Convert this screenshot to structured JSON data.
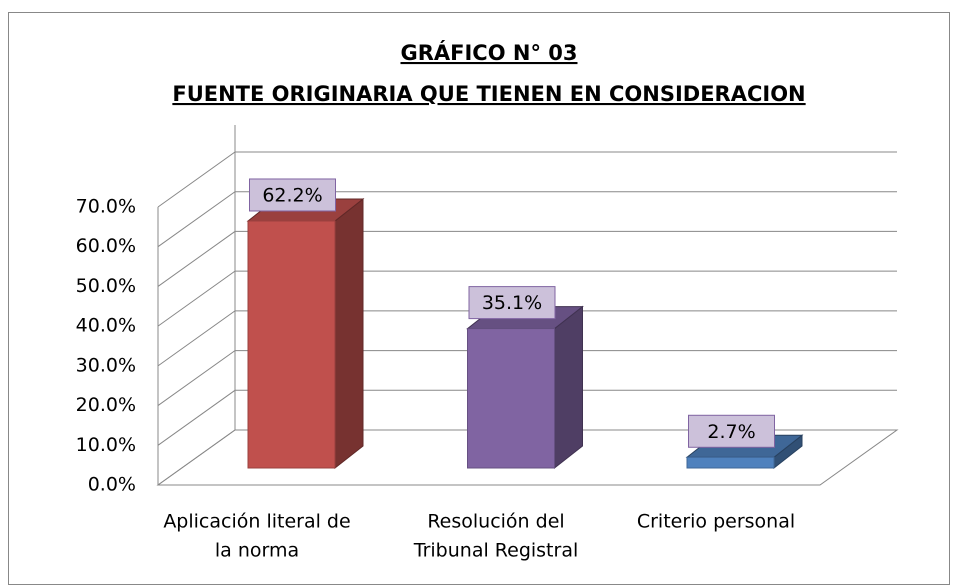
{
  "chart_data": {
    "type": "bar3d",
    "title": "GRÁFICO N° 03",
    "subtitle": "FUENTE ORIGINARIA QUE TIENEN EN CONSIDERACION",
    "categories": [
      [
        "Aplicación literal de",
        "la norma"
      ],
      [
        "Resolución del",
        "Tribunal Registral"
      ],
      [
        "Criterio personal"
      ]
    ],
    "values": [
      62.2,
      35.1,
      2.7
    ],
    "value_labels": [
      "62.2%",
      "35.1%",
      "2.7%"
    ],
    "colors": [
      "#c0504d",
      "#8064a2",
      "#4f81bd"
    ],
    "ylim": [
      0,
      70
    ],
    "yticks": [
      {
        "value": 0,
        "label": "0.0%"
      },
      {
        "value": 10,
        "label": "10.0%"
      },
      {
        "value": 20,
        "label": "20.0%"
      },
      {
        "value": 30,
        "label": "30.0%"
      },
      {
        "value": 40,
        "label": "40.0%"
      },
      {
        "value": 50,
        "label": "50.0%"
      },
      {
        "value": 60,
        "label": "60.0%"
      },
      {
        "value": 70,
        "label": "70.0%"
      }
    ],
    "grid": true
  }
}
